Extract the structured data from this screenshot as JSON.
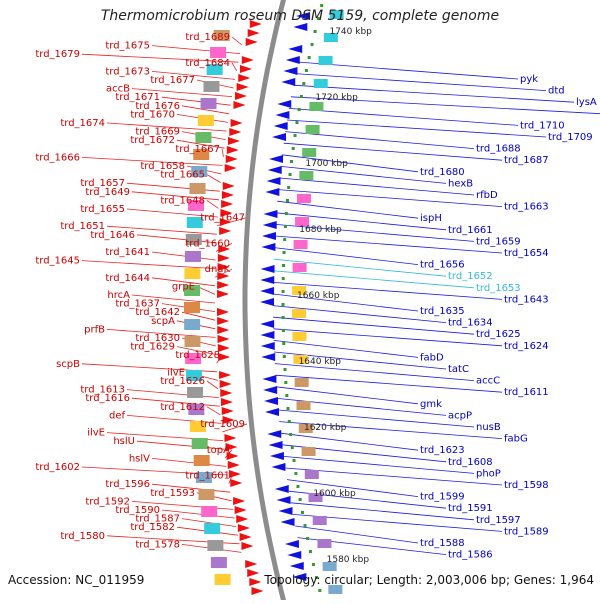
{
  "title": "Thermomicrobium roseum DSM 5159, complete genome",
  "footer": {
    "accession": "Accession: NC_011959",
    "topology": "Topology: circular; Length: 2,003,006 bp; Genes: 1,964"
  },
  "colors": {
    "left_label": "#cc0000",
    "left_line": "#ee2222",
    "right_label": "#0000bb",
    "right_line": "#1a1aee",
    "highlight_label": "#33bbdd",
    "backbone": "#8c8c8c",
    "forward_gene": "#ee1111",
    "reverse_gene": "#1111dd",
    "tick_dot": "#339933"
  },
  "scale_ticks": [
    "1740 kbp",
    "1720 kbp",
    "1700 kbp",
    "1680 kbp",
    "1660 kbp",
    "1640 kbp",
    "1620 kbp",
    "1600 kbp",
    "1580 kbp"
  ],
  "left_labels": [
    "trd_1689",
    "trd_1675",
    "trd_1679",
    "trd_1684",
    "trd_1673",
    "trd_1677",
    "accB",
    "trd_1671",
    "trd_1676",
    "trd_1670",
    "trd_1674",
    "trd_1669",
    "trd_1672",
    "trd_1667",
    "trd_1666",
    "trd_1658",
    "trd_1665",
    "trd_1657",
    "trd_1649",
    "trd_1648",
    "trd_1655",
    "trd_1647",
    "trd_1651",
    "trd_1646",
    "trd_1660",
    "trd_1641",
    "trd_1645",
    "dnaK",
    "trd_1644",
    "grpE",
    "hrcA",
    "trd_1637",
    "trd_1642",
    "scpA",
    "prfB",
    "trd_1630",
    "trd_1629",
    "trd_1628",
    "scpB",
    "ilvE",
    "trd_1626",
    "trd_1613",
    "trd_1616",
    "trd_1612",
    "def",
    "trd_1609",
    "ilvE",
    "hslU",
    "topA",
    "hslV",
    "trd_1602",
    "trd_1601",
    "trd_1596",
    "trd_1593",
    "trd_1592",
    "trd_1590",
    "trd_1587",
    "trd_1582",
    "trd_1580",
    "trd_1578"
  ],
  "right_labels": [
    "pyk",
    "dtd",
    "lysA",
    "trd_1712",
    "trd_1710",
    "trd_1709",
    "trd_1688",
    "trd_1687",
    "trd_1680",
    "hexB",
    "rfbD",
    "trd_1663",
    "ispH",
    "trd_1661",
    "trd_1659",
    "trd_1654",
    "trd_1656",
    "trd_1652",
    "trd_1653",
    "trd_1643",
    "trd_1635",
    "trd_1634",
    "trd_1625",
    "trd_1624",
    "fabD",
    "tatC",
    "accC",
    "trd_1611",
    "gmk",
    "acpP",
    "nusB",
    "fabG",
    "trd_1623",
    "trd_1608",
    "phoP",
    "trd_1598",
    "trd_1599",
    "trd_1591",
    "trd_1597",
    "trd_1589",
    "trd_1588",
    "trd_1586"
  ],
  "highlighted_right": [
    "trd_1652",
    "trd_1653"
  ]
}
